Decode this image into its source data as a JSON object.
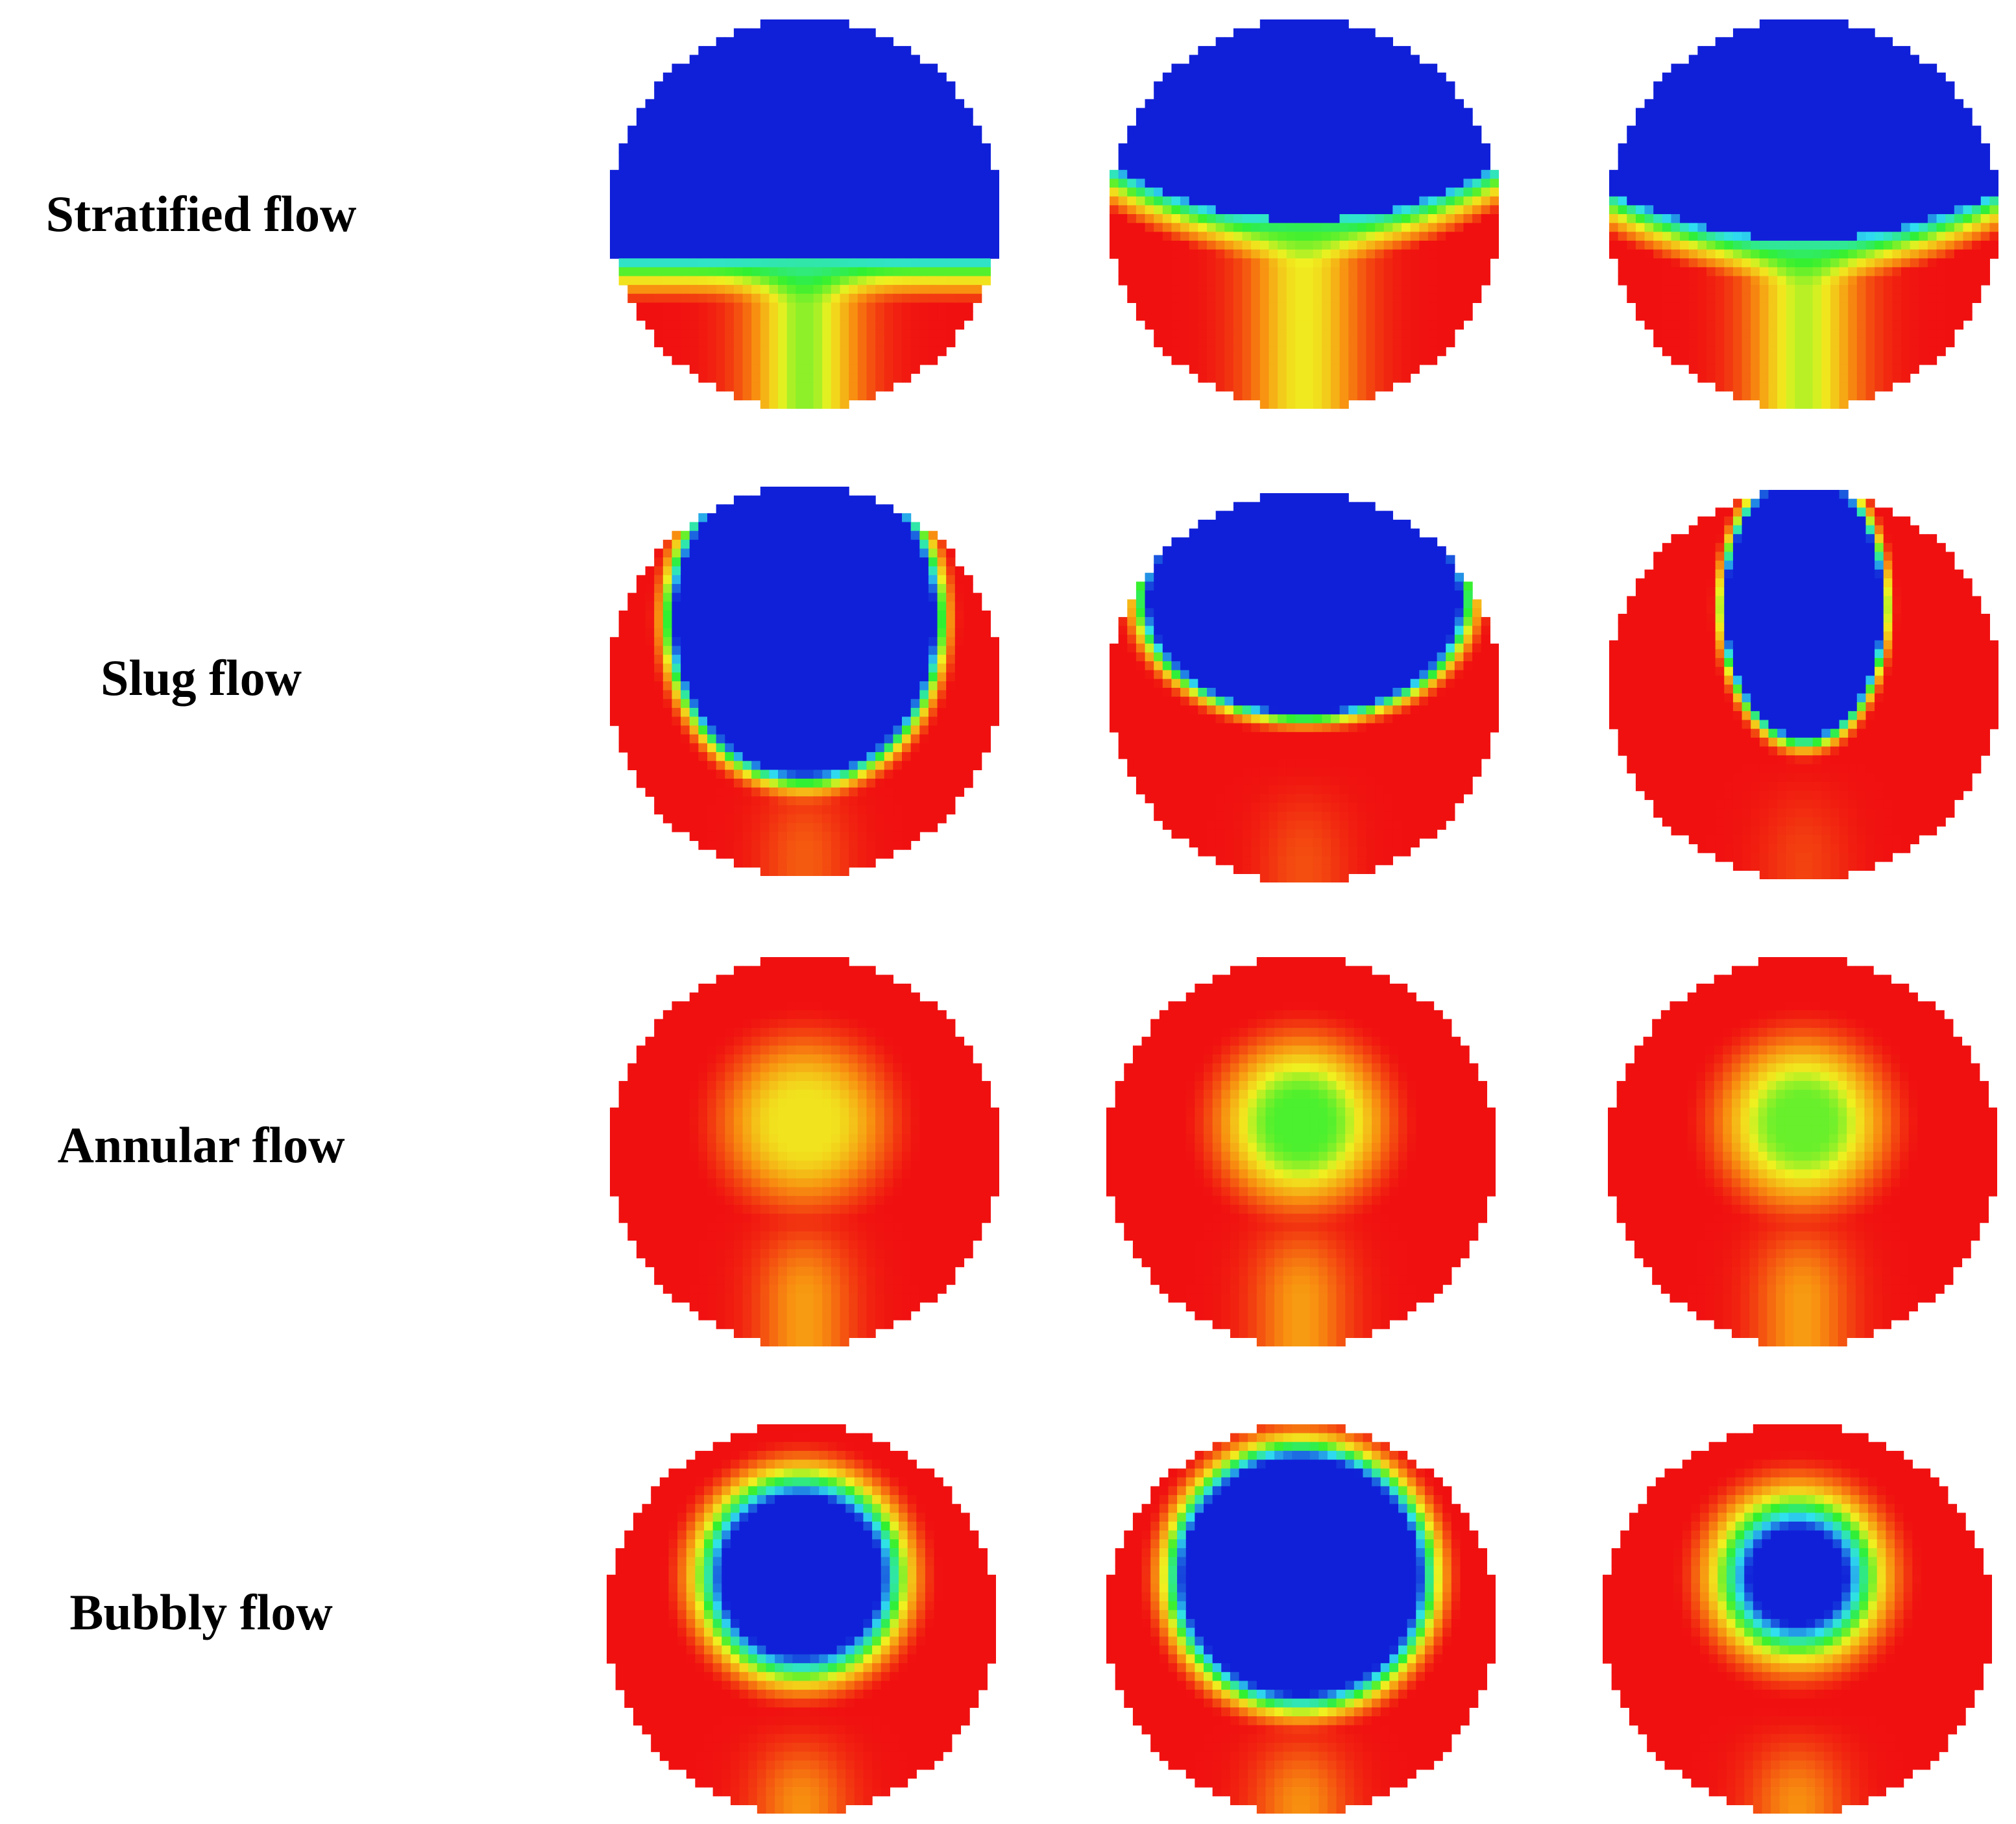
{
  "figure": {
    "rows": [
      {
        "label": "Stratified flow",
        "regime": "stratified",
        "images": 3
      },
      {
        "label": "Slug flow",
        "regime": "slug",
        "images": 3
      },
      {
        "label": "Annular flow",
        "regime": "annular",
        "images": 3
      },
      {
        "label": "Bubbly flow",
        "regime": "bubbly",
        "images": 3
      }
    ],
    "colormap": {
      "blue": "#1020d8",
      "cyan": "#30e0f0",
      "green": "#30f030",
      "yellow": "#f0f020",
      "orange": "#f89010",
      "red": "#f01010"
    },
    "background": "#ffffff"
  }
}
